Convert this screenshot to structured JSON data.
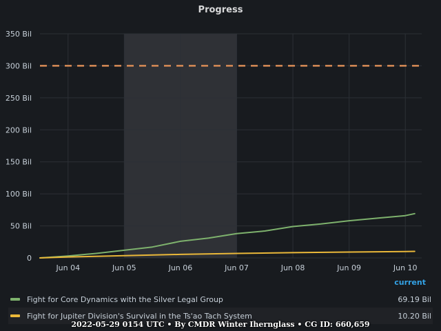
{
  "panel": {
    "title": "Progress"
  },
  "chart_data": {
    "type": "line",
    "title": "Progress",
    "xlabel": "",
    "ylabel": "",
    "x_ticks": [
      "Jun 04",
      "Jun 05",
      "Jun 06",
      "Jun 07",
      "Jun 08",
      "Jun 09",
      "Jun 10"
    ],
    "y_ticks": [
      "0",
      "50 Bil",
      "100 Bil",
      "150 Bil",
      "200 Bil",
      "250 Bil",
      "300 Bil",
      "350 Bil"
    ],
    "xlim": [
      "2022-06-03 12:00",
      "2022-06-10 07:00"
    ],
    "ylim": [
      0,
      350
    ],
    "y_unit": "Bil",
    "grid": true,
    "highlight_region": {
      "from": "2022-06-05 00:00",
      "to": "2022-06-07 00:00",
      "color": "#2f3136"
    },
    "threshold": {
      "value": 300,
      "style": "dashed",
      "color": "#d98c56"
    },
    "series": [
      {
        "name": "Fight for Core Dynamics with the Silver Legal Group",
        "color": "#7eb26d",
        "current": "69.19 Bil",
        "x": [
          "2022-06-03 12:00",
          "2022-06-04 00:00",
          "2022-06-04 12:00",
          "2022-06-05 00:00",
          "2022-06-05 12:00",
          "2022-06-06 00:00",
          "2022-06-06 12:00",
          "2022-06-07 00:00",
          "2022-06-07 12:00",
          "2022-06-08 00:00",
          "2022-06-08 12:00",
          "2022-06-09 00:00",
          "2022-06-09 12:00",
          "2022-06-10 00:00",
          "2022-06-10 04:00"
        ],
        "y": [
          0,
          3,
          7,
          12,
          17,
          26,
          31,
          38,
          42,
          49,
          53,
          58,
          62,
          66,
          69.19
        ]
      },
      {
        "name": "Fight for Jupiter Division's Survival in the Ts'ao Tach System",
        "color": "#eab839",
        "current": "10.20 Bil",
        "x": [
          "2022-06-03 12:00",
          "2022-06-04 00:00",
          "2022-06-05 00:00",
          "2022-06-06 00:00",
          "2022-06-07 00:00",
          "2022-06-08 00:00",
          "2022-06-09 00:00",
          "2022-06-10 00:00",
          "2022-06-10 04:00"
        ],
        "y": [
          0,
          1.5,
          3.5,
          5.5,
          7,
          8.2,
          9.2,
          10,
          10.2
        ]
      }
    ]
  },
  "legend": {
    "header": "current",
    "items": [
      {
        "name": "Fight for Core Dynamics with the Silver Legal Group",
        "value": "69.19 Bil",
        "color": "#7eb26d"
      },
      {
        "name": "Fight for Jupiter Division's Survival in the Ts'ao Tach System",
        "value": "10.20 Bil",
        "color": "#eab839"
      }
    ]
  },
  "footer": {
    "text": "2022-05-29 0154 UTC • By CMDR Winter Ihernglass • CG ID: 660,659"
  }
}
